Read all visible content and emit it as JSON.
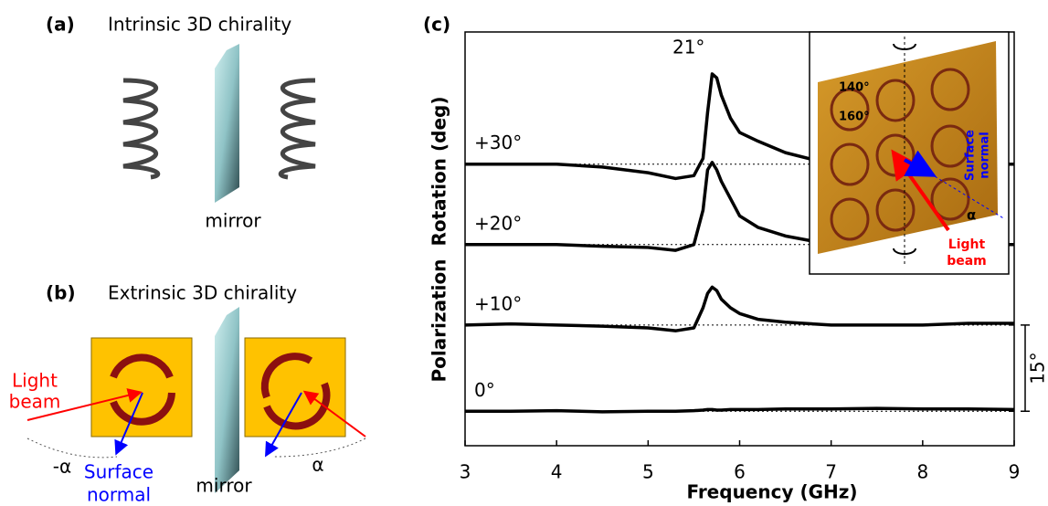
{
  "panel_a": {
    "label": "(a)",
    "title": "Intrinsic 3D chirality",
    "mirror": "mirror"
  },
  "panel_b": {
    "label": "(b)",
    "title": "Extrinsic 3D chirality",
    "light_beam": [
      "Light",
      "beam"
    ],
    "minus_alpha": "-α",
    "surface_normal": [
      "Surface",
      "normal"
    ],
    "mirror": "mirror",
    "alpha": "α"
  },
  "chart_data": {
    "type": "line",
    "panel_label": "(c)",
    "x_label": "Frequency (GHz)",
    "y_label": "Polarization  Rotation (deg)",
    "x": [
      3,
      3.5,
      4,
      4.5,
      5,
      5.3,
      5.5,
      5.6,
      5.65,
      5.7,
      5.75,
      5.8,
      5.9,
      6,
      6.2,
      6.5,
      7,
      7.5,
      8,
      8.5,
      9
    ],
    "series": [
      {
        "name": "0°",
        "color": "#000000",
        "values": [
          0,
          0,
          0.1,
          -0.1,
          0,
          0,
          0.1,
          0.2,
          0.3,
          0.3,
          0.2,
          0.2,
          0.3,
          0.3,
          0.3,
          0.4,
          0.4,
          0.5,
          0.4,
          0.4,
          0.3
        ]
      },
      {
        "name": "+10°",
        "color": "#000000",
        "values": [
          15,
          15.2,
          15,
          14.8,
          14.5,
          14,
          14.5,
          18,
          20.5,
          21.6,
          21,
          19.5,
          18,
          17,
          16,
          15.5,
          15,
          15,
          15,
          15.3,
          15.3
        ]
      },
      {
        "name": "+20°",
        "color": "#000000",
        "values": [
          29,
          29,
          29,
          28.7,
          28.5,
          28,
          29,
          35,
          42,
          43.3,
          42,
          40,
          37,
          34,
          32,
          30.5,
          29,
          29,
          29,
          29,
          29
        ]
      },
      {
        "name": "+30°",
        "color": "#000000",
        "values": [
          43,
          43,
          43,
          42.5,
          41.5,
          40.5,
          41,
          44,
          52,
          58.7,
          58,
          55,
          51,
          48.5,
          47,
          45,
          43,
          43,
          43,
          43,
          43
        ]
      }
    ],
    "hlines": [
      0,
      15,
      29,
      43
    ],
    "annotation": {
      "text": "21°",
      "x": 5.7,
      "y": 58.7
    },
    "scale_bar": {
      "label": "15°",
      "value": 15
    },
    "xlim": [
      3,
      9
    ],
    "ylim": [
      -6,
      66
    ],
    "xticks": [
      3,
      4,
      5,
      6,
      7,
      8,
      9
    ],
    "inset": {
      "angle1": "140°",
      "angle2": "160°",
      "surface_normal": [
        "Surface",
        "normal"
      ],
      "alpha": "α",
      "light_beam": [
        "Light",
        "beam"
      ]
    }
  }
}
